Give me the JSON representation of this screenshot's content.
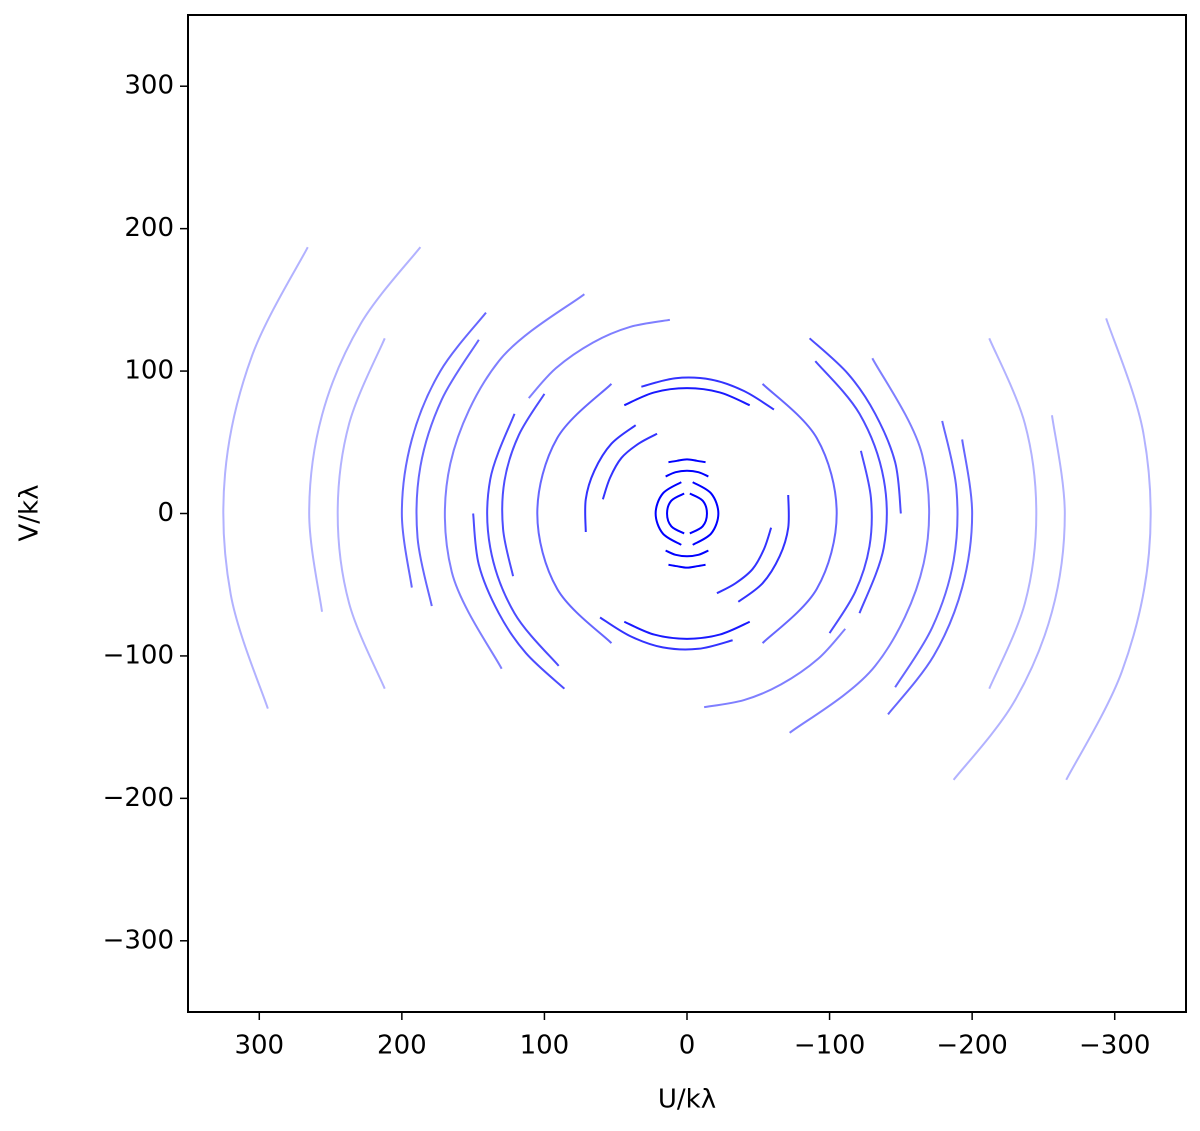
{
  "chart_data": {
    "type": "line",
    "xlabel": "U/kλ",
    "ylabel": "V/kλ",
    "xlim": [
      350,
      -350
    ],
    "ylim": [
      -350,
      350
    ],
    "xticks": [
      300,
      200,
      100,
      0,
      {
        "value": -100,
        "label": "−100"
      },
      {
        "value": -200,
        "label": "−200"
      },
      {
        "value": -300,
        "label": "−300"
      }
    ],
    "yticks": [
      {
        "value": -300,
        "label": "−300"
      },
      {
        "value": -200,
        "label": "−200"
      },
      {
        "value": -100,
        "label": "−100"
      },
      0,
      100,
      200,
      300
    ],
    "grid": false,
    "series": [
      {
        "color": "#0000ff",
        "alpha": 0.3,
        "x": [
          266,
          305,
          324,
          320,
          294
        ],
        "values": [
          187,
          111,
          28,
          -57,
          -137
        ]
      },
      {
        "color": "#0000ff",
        "alpha": 0.3,
        "x": [
          -266,
          -305,
          -324,
          -320,
          -294
        ],
        "values": [
          -187,
          -111,
          -28,
          57,
          137
        ]
      },
      {
        "color": "#0000ff",
        "alpha": 0.3,
        "x": [
          187,
          229,
          256,
          265,
          256
        ],
        "values": [
          187,
          133,
          69,
          0,
          -69
        ]
      },
      {
        "color": "#0000ff",
        "alpha": 0.3,
        "x": [
          -187,
          -229,
          -256,
          -265,
          -256
        ],
        "values": [
          -187,
          -133,
          -69,
          0,
          69
        ]
      },
      {
        "color": "#0000ff",
        "alpha": 0.3,
        "x": [
          212,
          237,
          245,
          237,
          212
        ],
        "values": [
          123,
          63,
          0,
          -63,
          -123
        ]
      },
      {
        "color": "#0000ff",
        "alpha": 0.3,
        "x": [
          -212,
          -237,
          -245,
          -237,
          -212
        ],
        "values": [
          -123,
          -63,
          0,
          63,
          123
        ]
      },
      {
        "color": "#0000ff",
        "alpha": 0.6,
        "x": [
          141,
          173,
          193,
          200,
          193
        ],
        "values": [
          141,
          100,
          52,
          0,
          -52
        ]
      },
      {
        "color": "#0000ff",
        "alpha": 0.6,
        "x": [
          -141,
          -173,
          -193,
          -200,
          -193
        ],
        "values": [
          -141,
          -100,
          -52,
          0,
          52
        ]
      },
      {
        "color": "#0000ff",
        "alpha": 0.6,
        "x": [
          146,
          172,
          187,
          189,
          179
        ],
        "values": [
          122,
          80,
          33,
          -17,
          -65
        ]
      },
      {
        "color": "#0000ff",
        "alpha": 0.6,
        "x": [
          -146,
          -172,
          -187,
          -189,
          -179
        ],
        "values": [
          -122,
          -80,
          -33,
          17,
          65
        ]
      },
      {
        "color": "#0000ff",
        "alpha": 0.7,
        "x": [
          121,
          138,
          138,
          121,
          90
        ],
        "values": [
          70,
          24,
          -24,
          -70,
          -107
        ]
      },
      {
        "color": "#0000ff",
        "alpha": 0.7,
        "x": [
          -121,
          -138,
          -138,
          -121,
          -90
        ],
        "values": [
          -70,
          -24,
          24,
          70,
          107
        ]
      },
      {
        "color": "#0000ff",
        "alpha": 0.7,
        "x": [
          150,
          146,
          132,
          113,
          86
        ],
        "values": [
          0,
          -36,
          -70,
          -98,
          -123
        ]
      },
      {
        "color": "#0000ff",
        "alpha": 0.7,
        "x": [
          -150,
          -146,
          -132,
          -113,
          -86
        ],
        "values": [
          0,
          36,
          70,
          98,
          123
        ]
      },
      {
        "color": "#0000ff",
        "alpha": 0.7,
        "x": [
          100,
          118,
          128,
          129,
          122
        ],
        "values": [
          84,
          55,
          23,
          -11,
          -44
        ]
      },
      {
        "color": "#0000ff",
        "alpha": 0.7,
        "x": [
          -100,
          -118,
          -128,
          -129,
          -122
        ],
        "values": [
          -84,
          -55,
          -23,
          11,
          44
        ]
      },
      {
        "color": "#0000ff",
        "alpha": 0.5,
        "x": [
          72,
          132,
          166,
          165,
          130
        ],
        "values": [
          154,
          107,
          35,
          -41,
          -109
        ]
      },
      {
        "color": "#0000ff",
        "alpha": 0.5,
        "x": [
          -72,
          -132,
          -166,
          -165,
          -130
        ],
        "values": [
          -154,
          -107,
          -35,
          41,
          109
        ]
      },
      {
        "color": "#0000ff",
        "alpha": 0.6,
        "x": [
          53,
          91,
          105,
          91,
          53
        ],
        "values": [
          91,
          53,
          0,
          -53,
          -91
        ]
      },
      {
        "color": "#0000ff",
        "alpha": 0.6,
        "x": [
          -53,
          -91,
          -105,
          -91,
          -53
        ],
        "values": [
          -91,
          -53,
          0,
          53,
          91
        ]
      },
      {
        "color": "#0000ff",
        "alpha": 0.9,
        "x": [
          -44,
          -23,
          0,
          23,
          44
        ],
        "values": [
          76,
          85,
          88,
          85,
          76
        ]
      },
      {
        "color": "#0000ff",
        "alpha": 0.9,
        "x": [
          44,
          23,
          0,
          -23,
          -44
        ],
        "values": [
          -76,
          -85,
          -88,
          -85,
          -76
        ]
      },
      {
        "color": "#0000ff",
        "alpha": 0.8,
        "x": [
          -61,
          -40,
          -17,
          8,
          32
        ],
        "values": [
          73,
          86,
          94,
          95,
          89
        ]
      },
      {
        "color": "#0000ff",
        "alpha": 0.8,
        "x": [
          61,
          40,
          17,
          -8,
          -32
        ],
        "values": [
          -73,
          -86,
          -94,
          -95,
          -89
        ]
      },
      {
        "color": "#0000ff",
        "alpha": 0.8,
        "x": [
          36,
          53,
          65,
          71,
          71
        ],
        "values": [
          62,
          49,
          30,
          10,
          -13
        ]
      },
      {
        "color": "#0000ff",
        "alpha": 0.8,
        "x": [
          -36,
          -53,
          -65,
          -71,
          -71
        ],
        "values": [
          -62,
          -49,
          -30,
          -10,
          13
        ]
      },
      {
        "color": "#0000ff",
        "alpha": 0.8,
        "x": [
          21,
          34,
          46,
          54,
          59
        ],
        "values": [
          56,
          49,
          39,
          25,
          10
        ]
      },
      {
        "color": "#0000ff",
        "alpha": 0.8,
        "x": [
          -21,
          -34,
          -46,
          -54,
          -59
        ],
        "values": [
          -56,
          -49,
          -39,
          -25,
          -10
        ]
      },
      {
        "color": "#0000ff",
        "alpha": 1,
        "x": [
          4,
          17,
          22,
          17,
          4
        ],
        "values": [
          -22,
          -14,
          0,
          14,
          22
        ]
      },
      {
        "color": "#0000ff",
        "alpha": 1,
        "x": [
          -4,
          -17,
          -22,
          -17,
          -4
        ],
        "values": [
          22,
          14,
          0,
          -14,
          -22
        ]
      },
      {
        "color": "#0000ff",
        "alpha": 1,
        "x": [
          2,
          11,
          14,
          11,
          2
        ],
        "values": [
          -14,
          -9,
          0,
          9,
          14
        ]
      },
      {
        "color": "#0000ff",
        "alpha": 1,
        "x": [
          -2,
          -11,
          -14,
          -11,
          -2
        ],
        "values": [
          14,
          9,
          0,
          -9,
          -14
        ]
      },
      {
        "color": "#0000ff",
        "alpha": 1,
        "x": [
          15,
          8,
          0,
          -8,
          -15
        ],
        "values": [
          26,
          29,
          30,
          29,
          26
        ]
      },
      {
        "color": "#0000ff",
        "alpha": 1,
        "x": [
          -15,
          -8,
          0,
          8,
          15
        ],
        "values": [
          -26,
          -29,
          -30,
          -29,
          -26
        ]
      },
      {
        "color": "#0000ff",
        "alpha": 1,
        "x": [
          13,
          7,
          0,
          -7,
          -13
        ],
        "values": [
          36,
          37,
          38,
          37,
          36
        ]
      },
      {
        "color": "#0000ff",
        "alpha": 1,
        "x": [
          -13,
          -7,
          0,
          7,
          13
        ],
        "values": [
          -36,
          -37,
          -38,
          -37,
          -36
        ]
      },
      {
        "color": "#0000ff",
        "alpha": 0.5,
        "x": [
          12,
          40,
          66,
          92,
          111
        ],
        "values": [
          136,
          131,
          120,
          102,
          81
        ]
      },
      {
        "color": "#0000ff",
        "alpha": 0.5,
        "x": [
          -12,
          -40,
          -66,
          -92,
          -111
        ],
        "values": [
          -136,
          -131,
          -120,
          -102,
          -81
        ]
      }
    ]
  }
}
